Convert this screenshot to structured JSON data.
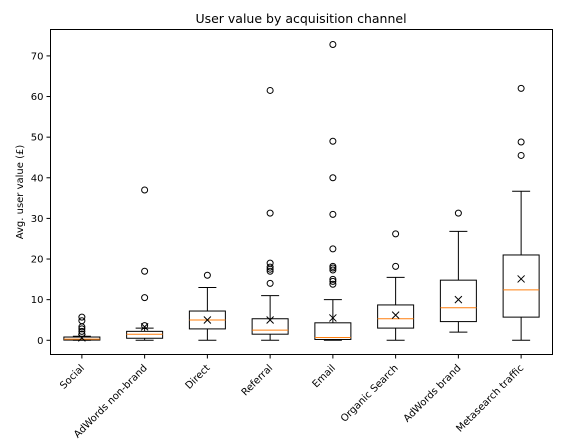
{
  "chart_data": {
    "type": "box",
    "title": "User value by acquisition channel",
    "xlabel": "",
    "ylabel": "Avg. user value (£)",
    "ylim": [
      -3.5,
      76.5
    ],
    "yticks": [
      0,
      10,
      20,
      30,
      40,
      50,
      60,
      70
    ],
    "grid": false,
    "categories": [
      "Social",
      "AdWords non-brand",
      "Direct",
      "Referral",
      "Email",
      "Organic Search",
      "AdWords brand",
      "Metasearch traffic"
    ],
    "series": [
      {
        "whisker_low": 0,
        "q1": 0.05,
        "median": 0.3,
        "q3": 0.8,
        "whisker_high": 1.0,
        "mean": 0.6,
        "fliers": [
          1.5,
          2.2,
          2.8,
          3.3,
          4.8,
          5.7
        ]
      },
      {
        "whisker_low": 0,
        "q1": 0.5,
        "median": 1.5,
        "q3": 2.2,
        "whisker_high": 3.0,
        "mean": 3.3,
        "fliers": [
          3.6,
          10.5,
          17.0,
          37.0
        ]
      },
      {
        "whisker_low": 0,
        "q1": 2.8,
        "median": 5.0,
        "q3": 7.2,
        "whisker_high": 13.0,
        "mean": 5.0,
        "fliers": [
          16.0
        ]
      },
      {
        "whisker_low": 0,
        "q1": 1.5,
        "median": 2.5,
        "q3": 5.3,
        "whisker_high": 11.0,
        "mean": 5.0,
        "fliers": [
          14.0,
          17.0,
          17.5,
          18.0,
          19.0,
          31.3,
          61.5
        ]
      },
      {
        "whisker_low": 0,
        "q1": 0.2,
        "median": 0.7,
        "q3": 4.3,
        "whisker_high": 10.0,
        "mean": 5.5,
        "fliers": [
          13.8,
          14.5,
          15.0,
          17.3,
          17.8,
          18.2,
          22.5,
          31.0,
          40.0,
          49.0,
          72.8
        ]
      },
      {
        "whisker_low": 0,
        "q1": 3.0,
        "median": 5.3,
        "q3": 8.7,
        "whisker_high": 15.5,
        "mean": 6.2,
        "fliers": [
          18.2,
          26.2
        ]
      },
      {
        "whisker_low": 2.0,
        "q1": 4.6,
        "median": 8.0,
        "q3": 14.8,
        "whisker_high": 26.8,
        "mean": 10.0,
        "fliers": [
          31.3
        ]
      },
      {
        "whisker_low": 0,
        "q1": 5.7,
        "median": 12.4,
        "q3": 21.0,
        "whisker_high": 36.7,
        "mean": 15.1,
        "fliers": [
          45.5,
          48.8,
          62.0
        ]
      }
    ]
  }
}
